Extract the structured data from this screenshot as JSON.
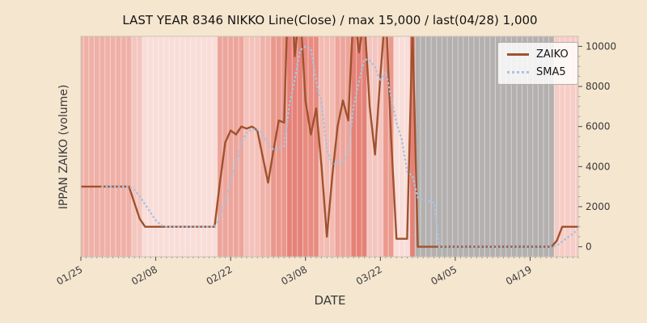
{
  "figure": {
    "background": "#f5e6cf"
  },
  "chart_data": {
    "type": "line",
    "title": "LAST YEAR 8346 NIKKO Line(Close) / max 15,000 / last(04/28) 1,000",
    "xlabel": "DATE",
    "ylabel": "IPPAN ZAIKO (volume)",
    "x_start": "01/25",
    "x_end": "04/28",
    "frequency": "daily",
    "points": 94,
    "x_tick_labels": [
      "01/25",
      "02/08",
      "02/22",
      "03/08",
      "03/22",
      "04/05",
      "04/19"
    ],
    "x_tick_day_index": [
      0,
      14,
      28,
      42,
      56,
      70,
      84
    ],
    "y_ticks": [
      0,
      2000,
      4000,
      6000,
      8000,
      10000
    ],
    "y_minor_step": 500,
    "ylim": [
      -500,
      10500
    ],
    "max_value": 15000,
    "last_value": 1000,
    "legend": {
      "position": "upper right",
      "entries": [
        "ZAIKO",
        "SMA5"
      ]
    },
    "series": [
      {
        "name": "ZAIKO",
        "color": "#a0522d",
        "style": "solid",
        "values": [
          3000,
          3000,
          3000,
          3000,
          3000,
          3000,
          3000,
          3000,
          3000,
          3000,
          2200,
          1400,
          1000,
          1000,
          1000,
          1000,
          1000,
          1000,
          1000,
          1000,
          1000,
          1000,
          1000,
          1000,
          1000,
          1000,
          3200,
          5200,
          5800,
          5600,
          6000,
          5900,
          6000,
          5800,
          4500,
          3200,
          4800,
          6300,
          6200,
          15000,
          9500,
          12000,
          7300,
          5600,
          6900,
          4000,
          500,
          3500,
          6000,
          7300,
          6300,
          12000,
          9700,
          11500,
          7000,
          4600,
          8500,
          12000,
          5500,
          400,
          400,
          400,
          11000,
          0,
          0,
          0,
          0,
          0,
          0,
          0,
          0,
          0,
          0,
          0,
          0,
          0,
          0,
          0,
          0,
          0,
          0,
          0,
          0,
          0,
          0,
          0,
          0,
          0,
          0,
          300,
          1000,
          1000,
          1000,
          1000
        ]
      },
      {
        "name": "SMA5",
        "color": "#a9c2e0",
        "style": "dotted",
        "window": 5,
        "derived_from": "ZAIKO"
      }
    ],
    "background_bands": [
      {
        "from": 0,
        "to": 9,
        "color": "#efb0a7"
      },
      {
        "from": 10,
        "to": 11,
        "color": "#f4c6bf"
      },
      {
        "from": 12,
        "to": 25,
        "color": "#f9ddd8"
      },
      {
        "from": 26,
        "to": 30,
        "color": "#eda59b"
      },
      {
        "from": 31,
        "to": 33,
        "color": "#f4c2ba"
      },
      {
        "from": 34,
        "to": 35,
        "color": "#f0b2a9"
      },
      {
        "from": 36,
        "to": 38,
        "color": "#ea978c"
      },
      {
        "from": 39,
        "to": 41,
        "color": "#e58278"
      },
      {
        "from": 42,
        "to": 44,
        "color": "#e98b80"
      },
      {
        "from": 45,
        "to": 47,
        "color": "#f3bbb2"
      },
      {
        "from": 48,
        "to": 50,
        "color": "#eda59b"
      },
      {
        "from": 51,
        "to": 53,
        "color": "#e58278"
      },
      {
        "from": 54,
        "to": 56,
        "color": "#f4c6bf"
      },
      {
        "from": 57,
        "to": 58,
        "color": "#eb9a8f"
      },
      {
        "from": 59,
        "to": 61,
        "color": "#f9ddd8"
      },
      {
        "from": 62,
        "to": 62,
        "color": "#e58278"
      },
      {
        "from": 63,
        "to": 88,
        "color": "#b3b0af"
      },
      {
        "from": 89,
        "to": 93,
        "color": "#f6cdc6"
      }
    ]
  }
}
